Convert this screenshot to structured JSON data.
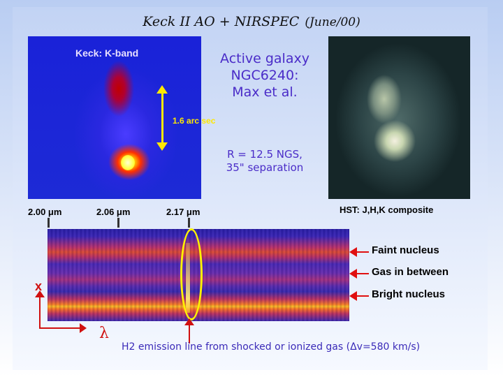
{
  "title": {
    "main": "Keck II AO + NIRSPEC",
    "date": "(June/00)"
  },
  "kband": {
    "label": "Keck: K-band",
    "scale_label": "1.6 arc sec"
  },
  "galaxy": {
    "line1": "Active galaxy",
    "line2": "NGC6240:",
    "line3": "Max et al."
  },
  "rinfo": {
    "line1": "R = 12.5 NGS,",
    "line2": "35\" separation"
  },
  "wavelengths": [
    "2.00 μm",
    "2.06 μm",
    "2.17 μm"
  ],
  "hst": {
    "label": "HST: J,H,K composite"
  },
  "nuclei": {
    "faint": "Faint nucleus",
    "gas": "Gas in between",
    "bright": "Bright nucleus"
  },
  "axes": {
    "x": "x",
    "lambda": "λ"
  },
  "h2": {
    "caption": "H2 emission line from shocked or ionized gas (Δv=580 km/s)"
  },
  "colors": {
    "accent_text": "#4a2cc8",
    "arrow_red": "#e01010",
    "highlight_yellow": "#fff200"
  }
}
